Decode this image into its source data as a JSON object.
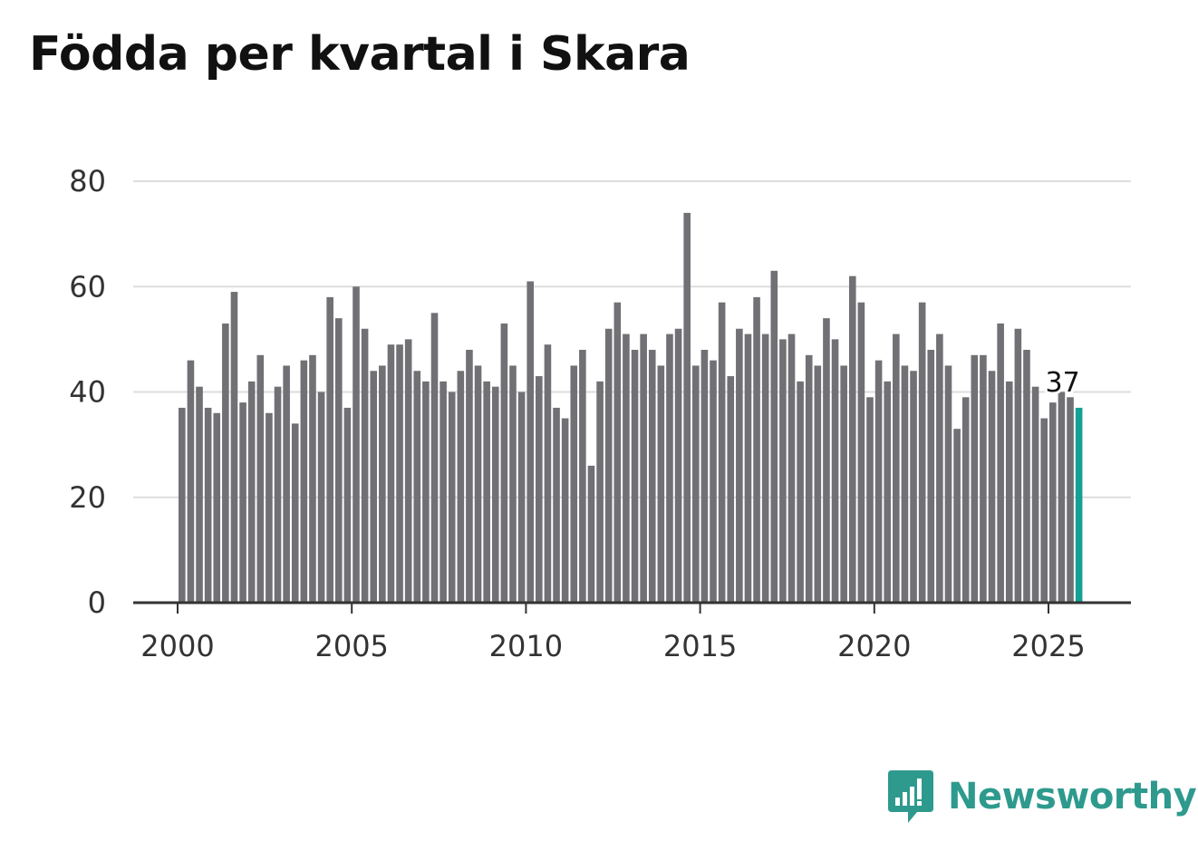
{
  "colors": {
    "bar": "#717074",
    "highlight": "#13a195",
    "grid": "#dddddd",
    "axis": "#333333",
    "brand": "#2e9a8e"
  },
  "brand": {
    "name": "Newsworthy",
    "icon": "newsworthy-logo-icon"
  },
  "chart_data": {
    "type": "bar",
    "title": "Födda per kvartal i Skara",
    "xlabel": "",
    "ylabel": "",
    "ylim": [
      0,
      80
    ],
    "yticks": [
      0,
      20,
      40,
      60,
      80
    ],
    "ytick_labels": [
      "0",
      "20",
      "40",
      "60",
      "80"
    ],
    "xticks": [
      2000,
      2005,
      2010,
      2015,
      2020,
      2025
    ],
    "xtick_labels": [
      "2000",
      "2005",
      "2010",
      "2015",
      "2020",
      "2025"
    ],
    "grid": true,
    "start": {
      "year": 2000,
      "quarter": 1
    },
    "values": [
      37,
      46,
      41,
      37,
      36,
      53,
      59,
      38,
      42,
      47,
      36,
      41,
      45,
      34,
      46,
      47,
      40,
      58,
      54,
      37,
      60,
      52,
      44,
      45,
      49,
      49,
      50,
      44,
      42,
      55,
      42,
      40,
      44,
      48,
      45,
      42,
      41,
      53,
      45,
      40,
      61,
      43,
      49,
      37,
      35,
      45,
      48,
      26,
      42,
      52,
      57,
      51,
      48,
      51,
      48,
      45,
      51,
      52,
      74,
      45,
      48,
      46,
      57,
      43,
      52,
      51,
      58,
      51,
      63,
      50,
      51,
      42,
      47,
      45,
      54,
      50,
      45,
      62,
      57,
      39,
      46,
      42,
      51,
      45,
      44,
      57,
      48,
      51,
      45,
      33,
      39,
      47,
      47,
      44,
      53,
      42,
      52,
      48,
      41,
      35,
      38,
      40,
      39,
      37
    ],
    "highlight": {
      "index": 103,
      "label": "37"
    }
  }
}
